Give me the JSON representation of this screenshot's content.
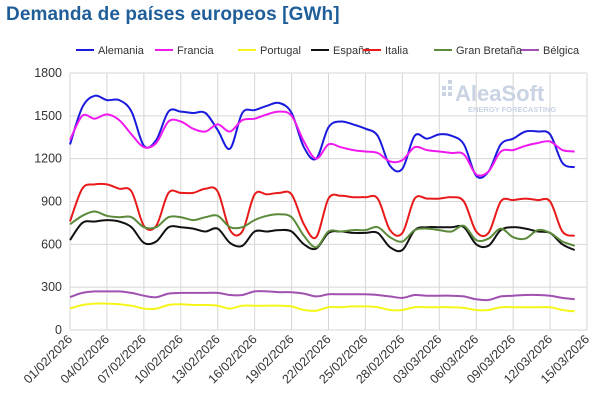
{
  "chart_data": {
    "type": "line",
    "title": "Demanda de países europeos [GWh]",
    "xlabel": "",
    "ylabel": "",
    "ylim": [
      0,
      1800
    ],
    "yticks": [
      0,
      300,
      600,
      900,
      1200,
      1500,
      1800
    ],
    "grid": true,
    "legend_position": "top",
    "x_tick_labels": [
      "01/02/2026",
      "04/02/2026",
      "07/02/2026",
      "10/02/2026",
      "13/02/2026",
      "16/02/2026",
      "19/02/2026",
      "22/02/2026",
      "25/02/2026",
      "28/02/2026",
      "03/03/2026",
      "06/03/2026",
      "09/03/2026",
      "12/03/2026",
      "15/03/2026"
    ],
    "x_start": "2026-02-01",
    "x_end": "2026-03-15",
    "series": [
      {
        "name": "Alemania",
        "color": "#1a1adf",
        "values": [
          1300,
          1560,
          1640,
          1610,
          1610,
          1530,
          1290,
          1330,
          1530,
          1530,
          1520,
          1520,
          1400,
          1270,
          1520,
          1540,
          1570,
          1590,
          1520,
          1280,
          1200,
          1420,
          1460,
          1440,
          1410,
          1360,
          1150,
          1130,
          1360,
          1340,
          1370,
          1360,
          1300,
          1080,
          1110,
          1300,
          1340,
          1390,
          1390,
          1370,
          1170,
          1140
        ]
      },
      {
        "name": "Francia",
        "color": "#f01af0",
        "values": [
          1330,
          1500,
          1480,
          1510,
          1470,
          1370,
          1280,
          1310,
          1460,
          1460,
          1410,
          1390,
          1440,
          1390,
          1470,
          1480,
          1510,
          1530,
          1500,
          1320,
          1200,
          1300,
          1280,
          1260,
          1250,
          1240,
          1180,
          1190,
          1280,
          1260,
          1250,
          1240,
          1230,
          1090,
          1110,
          1250,
          1260,
          1290,
          1310,
          1320,
          1260,
          1250
        ]
      },
      {
        "name": "Portugal",
        "color": "#f5f51a",
        "values": [
          150,
          175,
          185,
          185,
          180,
          170,
          150,
          150,
          175,
          180,
          175,
          175,
          170,
          150,
          170,
          170,
          170,
          170,
          165,
          140,
          135,
          160,
          160,
          165,
          165,
          160,
          140,
          140,
          160,
          160,
          160,
          160,
          155,
          140,
          140,
          160,
          160,
          160,
          160,
          160,
          140,
          130
        ]
      },
      {
        "name": "España",
        "color": "#111111",
        "values": [
          630,
          750,
          760,
          770,
          760,
          720,
          610,
          620,
          720,
          720,
          710,
          690,
          710,
          610,
          590,
          690,
          690,
          700,
          690,
          600,
          570,
          680,
          690,
          680,
          680,
          680,
          580,
          560,
          700,
          720,
          720,
          720,
          720,
          600,
          590,
          700,
          720,
          710,
          690,
          680,
          600,
          560
        ]
      },
      {
        "name": "Italia",
        "color": "#e81a1a",
        "values": [
          760,
          990,
          1020,
          1020,
          990,
          970,
          730,
          730,
          960,
          960,
          960,
          990,
          970,
          700,
          690,
          950,
          950,
          960,
          950,
          740,
          650,
          920,
          940,
          930,
          930,
          920,
          700,
          680,
          920,
          920,
          920,
          930,
          900,
          690,
          680,
          900,
          910,
          920,
          910,
          900,
          690,
          660
        ]
      },
      {
        "name": "Gran Bretaña",
        "color": "#5a8a3a",
        "values": [
          740,
          800,
          830,
          800,
          790,
          790,
          720,
          720,
          790,
          790,
          770,
          790,
          800,
          720,
          720,
          770,
          800,
          810,
          790,
          660,
          580,
          690,
          690,
          700,
          700,
          720,
          650,
          620,
          700,
          710,
          700,
          690,
          730,
          630,
          640,
          710,
          650,
          640,
          700,
          680,
          620,
          590
        ]
      },
      {
        "name": "Bélgica",
        "color": "#a050b0",
        "values": [
          230,
          260,
          270,
          270,
          270,
          260,
          240,
          230,
          255,
          260,
          260,
          260,
          260,
          245,
          245,
          270,
          270,
          265,
          265,
          255,
          235,
          250,
          250,
          250,
          250,
          245,
          235,
          225,
          245,
          240,
          240,
          240,
          235,
          215,
          210,
          235,
          240,
          245,
          245,
          240,
          225,
          215
        ]
      }
    ]
  },
  "brand": {
    "name": "AleaSoft",
    "tagline": "ENERGY FORECASTING"
  }
}
